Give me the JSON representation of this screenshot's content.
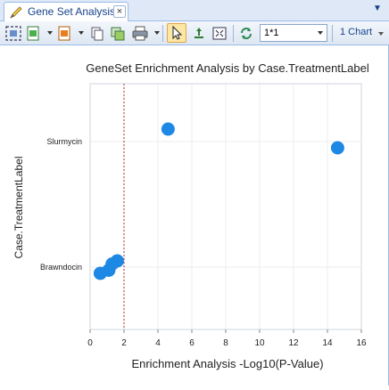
{
  "tab": {
    "label": "Gene Set Analysis",
    "close": "×"
  },
  "toolbar": {
    "zoom_value": "1*1",
    "charts_label": "1 Chart"
  },
  "chart_data": {
    "type": "scatter",
    "title": "GeneSet Enrichment Analysis by Case.TreatmentLabel",
    "xlabel": "Enrichment Analysis -Log10(P-Value)",
    "ylabel": "Case.TreatmentLabel",
    "categories": [
      "Slurmycin",
      "Brawndocin"
    ],
    "xlim": [
      0,
      16
    ],
    "xticks": [
      0,
      2,
      4,
      6,
      8,
      10,
      12,
      14,
      16
    ],
    "threshold_x": 2,
    "grid": true,
    "point_color": "#1e88e5",
    "threshold_color": "#b03030",
    "points": [
      {
        "category": "Slurmycin",
        "x": 4.6,
        "offset": -0.2
      },
      {
        "category": "Slurmycin",
        "x": 14.6,
        "offset": 0.1
      },
      {
        "category": "Brawndocin",
        "x": 0.6,
        "offset": 0.1
      },
      {
        "category": "Brawndocin",
        "x": 1.1,
        "offset": 0.05
      },
      {
        "category": "Brawndocin",
        "x": 1.3,
        "offset": -0.05
      },
      {
        "category": "Brawndocin",
        "x": 1.6,
        "offset": -0.1
      }
    ]
  }
}
